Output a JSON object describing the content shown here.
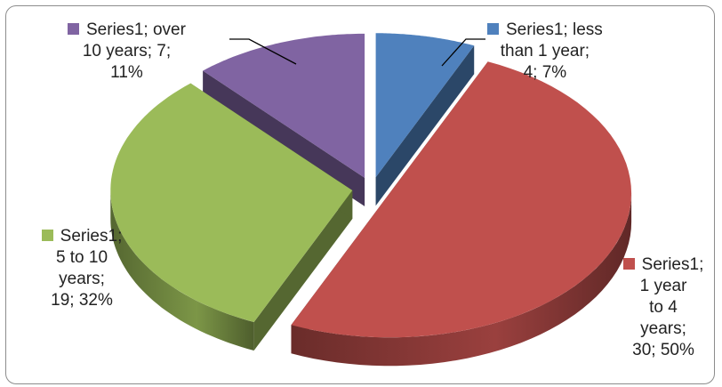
{
  "chart_data": {
    "type": "pie",
    "title": "",
    "series": [
      {
        "name": "Series1",
        "categories": [
          "less than 1 year",
          "1 year to 4 years",
          "5 to 10 years",
          "over 10 years"
        ],
        "values": [
          4,
          30,
          19,
          7
        ],
        "percentages": [
          7,
          50,
          32,
          11
        ]
      }
    ],
    "colors": [
      "#4f81bd",
      "#c0504d",
      "#9bbb59",
      "#8064a2"
    ],
    "data_labels": [
      [
        "Series1; less",
        "than 1 year;",
        "4; 7%"
      ],
      [
        "Series1;",
        "1 year",
        "to 4",
        "years;",
        "30; 50%"
      ],
      [
        "Series1;",
        "5 to 10",
        "years;",
        "19; 32%"
      ],
      [
        "Series1; over",
        "10 years; 7;",
        "11%"
      ]
    ],
    "legend": "none",
    "style": "3d exploded pie"
  }
}
